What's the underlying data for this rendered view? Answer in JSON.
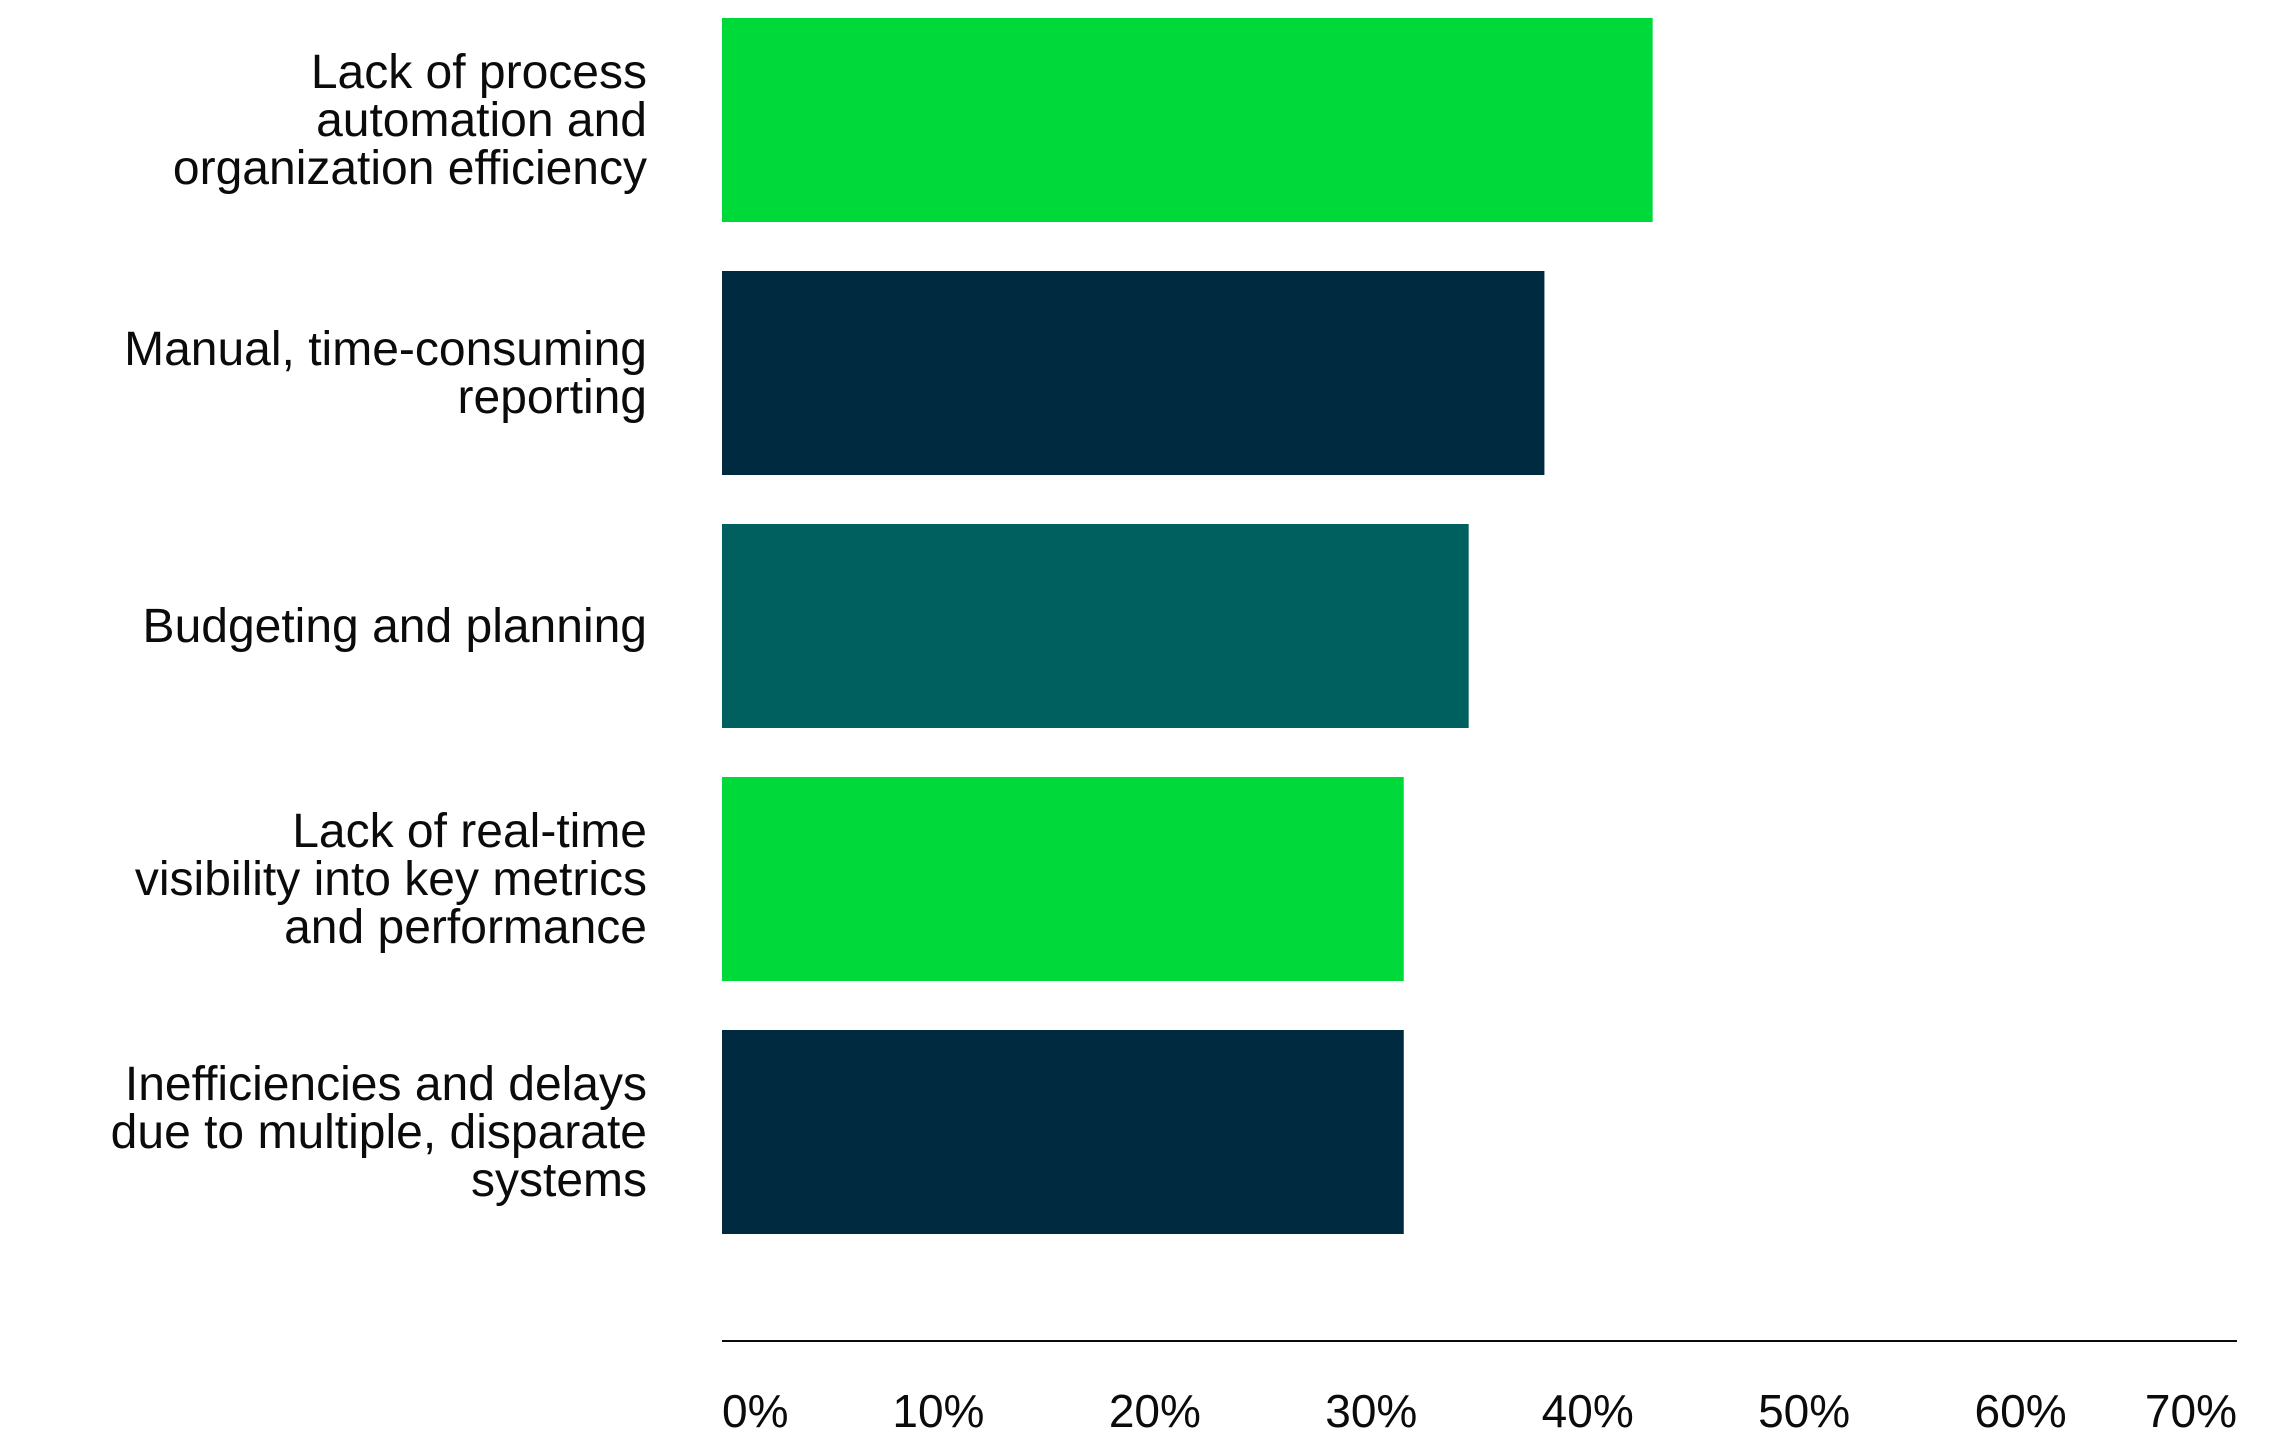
{
  "chart_data": {
    "type": "bar",
    "orientation": "horizontal",
    "categories": [
      "Lack of process automation and organization efficiency",
      "Manual, time-consuming reporting",
      "Budgeting and planning",
      "Lack of real-time visibility into key metrics and performance",
      "Inefficiencies and delays due to multiple, disparate systems"
    ],
    "category_lines": [
      [
        "Lack of process",
        "automation and",
        "organization efficiency"
      ],
      [
        "Manual, time-consuming",
        "reporting"
      ],
      [
        "Budgeting and planning"
      ],
      [
        "Lack of real-time",
        "visibility into key metrics",
        "and performance"
      ],
      [
        "Inefficiencies and delays",
        "due to multiple, disparate",
        "systems"
      ]
    ],
    "values": [
      43,
      38,
      34.5,
      31.5,
      31.5
    ],
    "bar_colors": [
      "#00d93a",
      "#002a3f",
      "#005f5f",
      "#00d93a",
      "#002a3f"
    ],
    "xlim": [
      0,
      70
    ],
    "xticks": [
      0,
      10,
      20,
      30,
      40,
      50,
      60,
      70
    ],
    "xtick_labels": [
      "0%",
      "10%",
      "20%",
      "30%",
      "40%",
      "50%",
      "60%",
      "70%"
    ],
    "grid": false,
    "legend": "none",
    "title": "",
    "xlabel": "",
    "ylabel": "",
    "axis_color": "#0b0b0b"
  }
}
